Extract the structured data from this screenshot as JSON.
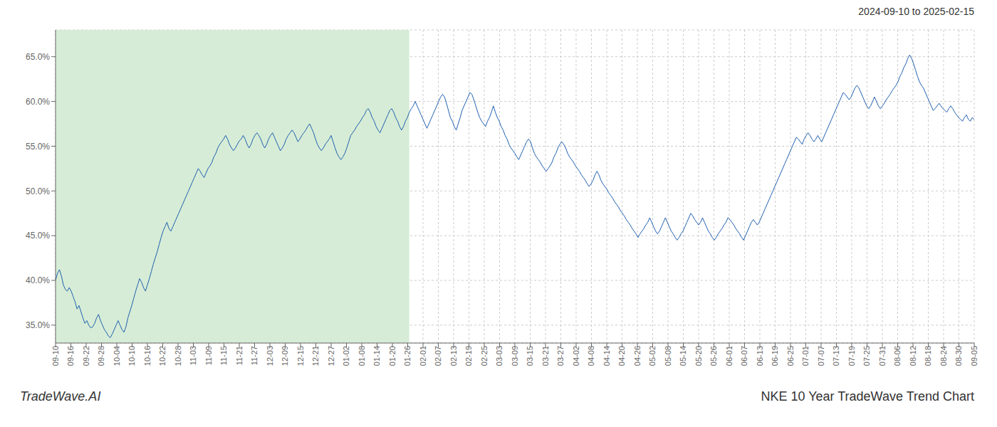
{
  "chart_data": {
    "type": "line",
    "title": "NKE 10 Year TradeWave Trend Chart",
    "subtitle": "2024-09-10 to 2025-02-15",
    "annotations": [
      "TradeWave.AI"
    ],
    "color": "#2060b0",
    "grid": true,
    "xlim": [
      0,
      470
    ],
    "xticks": [
      {
        "value": 0,
        "label": "09-10"
      },
      {
        "value": 7.8333,
        "label": "09-16"
      },
      {
        "value": 15.6667,
        "label": "09-22"
      },
      {
        "value": 23.5,
        "label": "09-28"
      },
      {
        "value": 31.3333,
        "label": "10-04"
      },
      {
        "value": 39.1667,
        "label": "10-10"
      },
      {
        "value": 47,
        "label": "10-16"
      },
      {
        "value": 54.8333,
        "label": "10-22"
      },
      {
        "value": 62.6667,
        "label": "10-28"
      },
      {
        "value": 70.5,
        "label": "11-03"
      },
      {
        "value": 78.3333,
        "label": "11-09"
      },
      {
        "value": 86.1667,
        "label": "11-15"
      },
      {
        "value": 94,
        "label": "11-21"
      },
      {
        "value": 101.8333,
        "label": "11-27"
      },
      {
        "value": 109.6667,
        "label": "12-03"
      },
      {
        "value": 117.5,
        "label": "12-09"
      },
      {
        "value": 125.3333,
        "label": "12-15"
      },
      {
        "value": 133.1667,
        "label": "12-21"
      },
      {
        "value": 141,
        "label": "12-27"
      },
      {
        "value": 148.8333,
        "label": "01-02"
      },
      {
        "value": 156.6667,
        "label": "01-08"
      },
      {
        "value": 164.5,
        "label": "01-14"
      },
      {
        "value": 172.3333,
        "label": "01-20"
      },
      {
        "value": 180.1667,
        "label": "01-26"
      },
      {
        "value": 188,
        "label": "02-01"
      },
      {
        "value": 195.8333,
        "label": "02-07"
      },
      {
        "value": 203.6667,
        "label": "02-13"
      },
      {
        "value": 211.5,
        "label": "02-19"
      },
      {
        "value": 219.3333,
        "label": "02-25"
      },
      {
        "value": 227.1667,
        "label": "03-03"
      },
      {
        "value": 235,
        "label": "03-09"
      },
      {
        "value": 242.8333,
        "label": "03-15"
      },
      {
        "value": 250.6667,
        "label": "03-21"
      },
      {
        "value": 258.5,
        "label": "03-27"
      },
      {
        "value": 266.3333,
        "label": "04-02"
      },
      {
        "value": 274.1667,
        "label": "04-08"
      },
      {
        "value": 282,
        "label": "04-14"
      },
      {
        "value": 289.8333,
        "label": "04-20"
      },
      {
        "value": 297.6667,
        "label": "04-26"
      },
      {
        "value": 305.5,
        "label": "05-02"
      },
      {
        "value": 313.3333,
        "label": "05-08"
      },
      {
        "value": 321.1667,
        "label": "05-14"
      },
      {
        "value": 329,
        "label": "05-20"
      },
      {
        "value": 336.8333,
        "label": "05-26"
      },
      {
        "value": 344.6667,
        "label": "06-01"
      },
      {
        "value": 352.5,
        "label": "06-07"
      },
      {
        "value": 360.3333,
        "label": "06-13"
      },
      {
        "value": 368.1667,
        "label": "06-19"
      },
      {
        "value": 376,
        "label": "06-25"
      },
      {
        "value": 383.8333,
        "label": "07-01"
      },
      {
        "value": 391.6667,
        "label": "07-07"
      },
      {
        "value": 399.5,
        "label": "07-13"
      },
      {
        "value": 407.3333,
        "label": "07-19"
      },
      {
        "value": 415.1667,
        "label": "07-25"
      },
      {
        "value": 423,
        "label": "07-31"
      },
      {
        "value": 430.8333,
        "label": "08-06"
      },
      {
        "value": 438.6667,
        "label": "08-12"
      },
      {
        "value": 446.5,
        "label": "08-18"
      },
      {
        "value": 454.3333,
        "label": "08-24"
      },
      {
        "value": 462.1667,
        "label": "08-30"
      },
      {
        "value": 470,
        "label": "09-05"
      }
    ],
    "ylim": [
      0.33,
      0.68
    ],
    "yticks": [
      {
        "value": 0.35,
        "label": "35.0%"
      },
      {
        "value": 0.4,
        "label": "40.0%"
      },
      {
        "value": 0.45,
        "label": "45.0%"
      },
      {
        "value": 0.5,
        "label": "50.0%"
      },
      {
        "value": 0.55,
        "label": "55.0%"
      },
      {
        "value": 0.6,
        "label": "60.0%"
      },
      {
        "value": 0.65,
        "label": "65.0%"
      }
    ],
    "shaded_region": {
      "from": 0,
      "to": 180.95,
      "color": "#d6ecd6"
    },
    "values": [
      0.4,
      0.408,
      0.412,
      0.405,
      0.395,
      0.39,
      0.388,
      0.392,
      0.388,
      0.382,
      0.376,
      0.368,
      0.372,
      0.365,
      0.358,
      0.352,
      0.355,
      0.35,
      0.347,
      0.348,
      0.352,
      0.358,
      0.362,
      0.355,
      0.35,
      0.345,
      0.342,
      0.338,
      0.336,
      0.34,
      0.345,
      0.35,
      0.355,
      0.35,
      0.345,
      0.342,
      0.348,
      0.358,
      0.365,
      0.372,
      0.38,
      0.388,
      0.395,
      0.402,
      0.398,
      0.392,
      0.388,
      0.395,
      0.402,
      0.41,
      0.418,
      0.425,
      0.432,
      0.44,
      0.448,
      0.455,
      0.46,
      0.465,
      0.458,
      0.455,
      0.46,
      0.465,
      0.47,
      0.475,
      0.48,
      0.485,
      0.49,
      0.495,
      0.5,
      0.505,
      0.51,
      0.515,
      0.52,
      0.525,
      0.522,
      0.518,
      0.515,
      0.52,
      0.525,
      0.528,
      0.532,
      0.538,
      0.542,
      0.548,
      0.552,
      0.555,
      0.558,
      0.562,
      0.558,
      0.552,
      0.548,
      0.545,
      0.548,
      0.552,
      0.556,
      0.558,
      0.562,
      0.558,
      0.552,
      0.548,
      0.552,
      0.558,
      0.562,
      0.565,
      0.562,
      0.558,
      0.552,
      0.548,
      0.552,
      0.558,
      0.562,
      0.565,
      0.56,
      0.555,
      0.55,
      0.545,
      0.548,
      0.552,
      0.558,
      0.562,
      0.565,
      0.568,
      0.565,
      0.56,
      0.555,
      0.558,
      0.562,
      0.565,
      0.568,
      0.572,
      0.575,
      0.57,
      0.565,
      0.558,
      0.552,
      0.548,
      0.545,
      0.548,
      0.552,
      0.555,
      0.558,
      0.562,
      0.555,
      0.548,
      0.542,
      0.538,
      0.535,
      0.538,
      0.542,
      0.548,
      0.555,
      0.562,
      0.565,
      0.568,
      0.572,
      0.575,
      0.578,
      0.582,
      0.585,
      0.59,
      0.592,
      0.588,
      0.582,
      0.578,
      0.572,
      0.568,
      0.565,
      0.57,
      0.575,
      0.58,
      0.585,
      0.59,
      0.592,
      0.588,
      0.582,
      0.578,
      0.572,
      0.568,
      0.572,
      0.578,
      0.582,
      0.588,
      0.592,
      0.595,
      0.6,
      0.595,
      0.59,
      0.585,
      0.58,
      0.575,
      0.57,
      0.575,
      0.58,
      0.585,
      0.59,
      0.595,
      0.6,
      0.605,
      0.608,
      0.605,
      0.598,
      0.59,
      0.582,
      0.578,
      0.572,
      0.568,
      0.575,
      0.582,
      0.59,
      0.595,
      0.6,
      0.605,
      0.61,
      0.608,
      0.602,
      0.595,
      0.588,
      0.582,
      0.578,
      0.575,
      0.572,
      0.578,
      0.582,
      0.588,
      0.595,
      0.588,
      0.582,
      0.578,
      0.572,
      0.568,
      0.562,
      0.558,
      0.552,
      0.548,
      0.545,
      0.542,
      0.538,
      0.535,
      0.54,
      0.545,
      0.55,
      0.555,
      0.558,
      0.555,
      0.548,
      0.542,
      0.538,
      0.535,
      0.532,
      0.528,
      0.525,
      0.522,
      0.525,
      0.528,
      0.532,
      0.538,
      0.542,
      0.548,
      0.552,
      0.555,
      0.552,
      0.548,
      0.542,
      0.538,
      0.535,
      0.532,
      0.528,
      0.525,
      0.522,
      0.518,
      0.515,
      0.512,
      0.508,
      0.505,
      0.508,
      0.512,
      0.518,
      0.522,
      0.518,
      0.512,
      0.508,
      0.505,
      0.502,
      0.498,
      0.495,
      0.492,
      0.488,
      0.485,
      0.482,
      0.478,
      0.475,
      0.472,
      0.468,
      0.465,
      0.462,
      0.458,
      0.455,
      0.452,
      0.448,
      0.452,
      0.455,
      0.458,
      0.462,
      0.465,
      0.47,
      0.465,
      0.46,
      0.455,
      0.452,
      0.455,
      0.46,
      0.465,
      0.47,
      0.465,
      0.46,
      0.455,
      0.452,
      0.448,
      0.445,
      0.448,
      0.452,
      0.455,
      0.46,
      0.465,
      0.47,
      0.475,
      0.472,
      0.468,
      0.465,
      0.462,
      0.465,
      0.47,
      0.465,
      0.46,
      0.455,
      0.452,
      0.448,
      0.445,
      0.448,
      0.452,
      0.455,
      0.458,
      0.462,
      0.465,
      0.47,
      0.468,
      0.465,
      0.462,
      0.458,
      0.455,
      0.452,
      0.448,
      0.445,
      0.45,
      0.455,
      0.46,
      0.465,
      0.468,
      0.465,
      0.462,
      0.465,
      0.47,
      0.475,
      0.48,
      0.485,
      0.49,
      0.495,
      0.5,
      0.505,
      0.51,
      0.515,
      0.52,
      0.525,
      0.53,
      0.535,
      0.54,
      0.545,
      0.55,
      0.555,
      0.56,
      0.558,
      0.555,
      0.552,
      0.558,
      0.562,
      0.565,
      0.562,
      0.558,
      0.555,
      0.558,
      0.562,
      0.558,
      0.555,
      0.56,
      0.565,
      0.57,
      0.575,
      0.58,
      0.585,
      0.59,
      0.595,
      0.6,
      0.605,
      0.61,
      0.608,
      0.605,
      0.602,
      0.605,
      0.61,
      0.615,
      0.618,
      0.615,
      0.61,
      0.605,
      0.6,
      0.595,
      0.592,
      0.595,
      0.6,
      0.605,
      0.6,
      0.595,
      0.592,
      0.595,
      0.598,
      0.602,
      0.605,
      0.608,
      0.612,
      0.615,
      0.618,
      0.622,
      0.628,
      0.632,
      0.638,
      0.642,
      0.648,
      0.652,
      0.648,
      0.642,
      0.635,
      0.628,
      0.622,
      0.618,
      0.615,
      0.61,
      0.605,
      0.6,
      0.595,
      0.59,
      0.592,
      0.595,
      0.598,
      0.595,
      0.592,
      0.59,
      0.588,
      0.592,
      0.595,
      0.592,
      0.588,
      0.585,
      0.582,
      0.58,
      0.578,
      0.582,
      0.585,
      0.58,
      0.578,
      0.582,
      0.58
    ]
  }
}
